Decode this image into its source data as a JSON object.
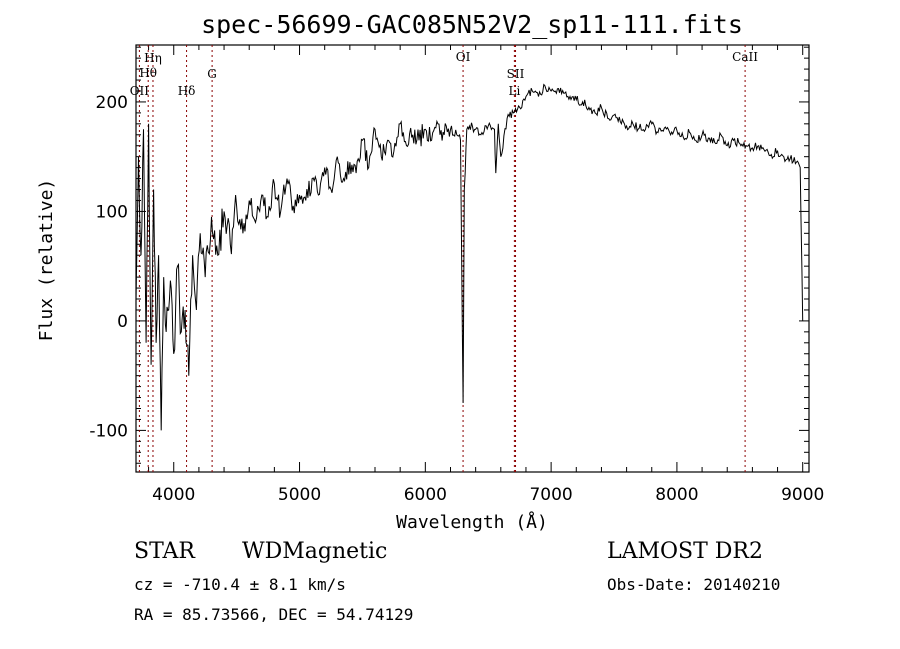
{
  "chart_data": {
    "type": "line",
    "title": "spec-56699-GAC085N52V2_sp11-111.fits",
    "xlabel": "Wavelength (Å)",
    "ylabel": "Flux (relative)",
    "xlim": [
      3700,
      9050
    ],
    "ylim": [
      -138,
      252
    ],
    "x_ticks": [
      4000,
      5000,
      6000,
      7000,
      8000,
      9000
    ],
    "y_ticks": [
      -100,
      0,
      100,
      200
    ],
    "grid": false,
    "line_color": "#000000",
    "marker_color": "#8b0000",
    "series": [
      {
        "x": [
          3700,
          3720,
          3740,
          3760,
          3780,
          3800,
          3820,
          3840,
          3860,
          3880,
          3900,
          3920,
          3940,
          3960,
          3980,
          4000,
          4030,
          4060,
          4090,
          4120,
          4150,
          4180,
          4210,
          4250,
          4300,
          4350,
          4400,
          4450,
          4500,
          4550,
          4600,
          4650,
          4700,
          4750,
          4800,
          4850,
          4900,
          4950,
          5000,
          5050,
          5100,
          5150,
          5200,
          5250,
          5300,
          5350,
          5400,
          5450,
          5500,
          5550,
          5600,
          5650,
          5700,
          5750,
          5800,
          5850,
          5900,
          5950,
          6000,
          6050,
          6100,
          6150,
          6200,
          6250,
          6280,
          6300,
          6310,
          6330,
          6350,
          6400,
          6450,
          6500,
          6550,
          6560,
          6580,
          6600,
          6650,
          6700,
          6750,
          6800,
          6850,
          6900,
          6950,
          7000,
          7050,
          7100,
          7150,
          7200,
          7250,
          7300,
          7350,
          7400,
          7450,
          7500,
          7550,
          7600,
          7650,
          7700,
          7750,
          7800,
          7850,
          7900,
          7950,
          8000,
          8050,
          8100,
          8150,
          8200,
          8250,
          8300,
          8350,
          8400,
          8450,
          8500,
          8550,
          8600,
          8650,
          8700,
          8750,
          8800,
          8850,
          8900,
          8950,
          8980,
          9000
        ],
        "y": [
          20,
          150,
          60,
          175,
          -20,
          180,
          -40,
          120,
          -20,
          60,
          -100,
          40,
          -10,
          10,
          30,
          -30,
          50,
          -10,
          10,
          -50,
          60,
          10,
          80,
          40,
          95,
          60,
          100,
          70,
          105,
          80,
          110,
          90,
          115,
          95,
          125,
          100,
          130,
          105,
          115,
          110,
          130,
          115,
          140,
          120,
          150,
          130,
          145,
          135,
          165,
          140,
          175,
          150,
          165,
          155,
          180,
          160,
          170,
          165,
          175,
          165,
          180,
          170,
          175,
          170,
          165,
          -75,
          120,
          175,
          178,
          175,
          172,
          178,
          175,
          135,
          180,
          150,
          185,
          190,
          195,
          205,
          210,
          205,
          215,
          210,
          212,
          208,
          205,
          202,
          200,
          195,
          190,
          195,
          185,
          188,
          182,
          178,
          180,
          176,
          175,
          180,
          172,
          176,
          170,
          174,
          168,
          172,
          165,
          170,
          167,
          163,
          170,
          160,
          165,
          162,
          160,
          158,
          160,
          155,
          152,
          155,
          150,
          148,
          145,
          140,
          0
        ]
      }
    ],
    "line_markers": [
      {
        "label": "OII",
        "x": 3727
      },
      {
        "label": "Hη",
        "x": 3835
      },
      {
        "label": "Hθ",
        "x": 3797
      },
      {
        "label": "Hδ",
        "x": 4102
      },
      {
        "label": "G",
        "x": 4305
      },
      {
        "label": "OI",
        "x": 6300
      },
      {
        "label": "SII",
        "x": 6717
      },
      {
        "label": "Li",
        "x": 6708
      },
      {
        "label": "CaII",
        "x": 8542
      }
    ]
  },
  "footer": {
    "class_label": "STAR",
    "subclass_label": "WDMagnetic",
    "survey_label": "LAMOST DR2",
    "cz_line": "cz = -710.4 ± 8.1 km/s",
    "obsdate_line": "Obs-Date: 20140210",
    "coords_line": "RA =  85.73566, DEC =  54.74129"
  }
}
